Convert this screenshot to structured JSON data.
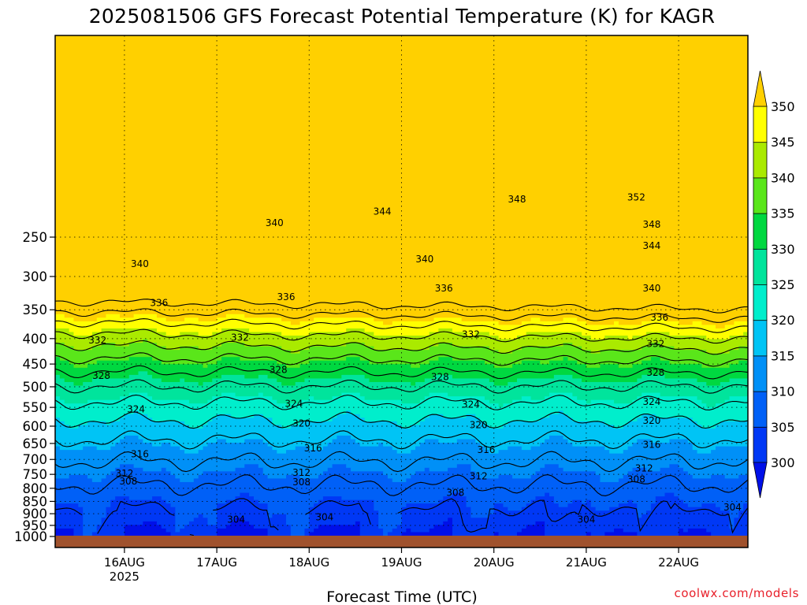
{
  "chart_data": {
    "type": "heatmap",
    "title": "2025081506 GFS Forecast Potential Temperature (K) for KAGR",
    "xlabel": "Forecast Time (UTC)",
    "ylabel": "",
    "credit": "coolwx.com/models",
    "x_ticks": [
      {
        "day": "16AUG",
        "year": "2025",
        "t": 18
      },
      {
        "day": "17AUG",
        "year": "",
        "t": 42
      },
      {
        "day": "18AUG",
        "year": "",
        "t": 66
      },
      {
        "day": "19AUG",
        "year": "",
        "t": 90
      },
      {
        "day": "20AUG",
        "year": "",
        "t": 114
      },
      {
        "day": "21AUG",
        "year": "",
        "t": 138
      },
      {
        "day": "22AUG",
        "year": "",
        "t": 162
      }
    ],
    "xlim_hours": [
      0,
      180
    ],
    "y_ticks": [
      250,
      300,
      350,
      400,
      450,
      500,
      550,
      600,
      650,
      700,
      750,
      800,
      850,
      900,
      950,
      1000
    ],
    "ylim_hPa": [
      1000,
      200
    ],
    "y_scale": "log-pressure",
    "contour_interval": 4,
    "contour_labels": [
      {
        "v": "352",
        "t": 151,
        "p": 208
      },
      {
        "v": "348",
        "t": 120,
        "p": 210
      },
      {
        "v": "348",
        "t": 155,
        "p": 236
      },
      {
        "v": "344",
        "t": 85,
        "p": 222
      },
      {
        "v": "344",
        "t": 155,
        "p": 260
      },
      {
        "v": "340",
        "t": 57,
        "p": 234
      },
      {
        "v": "340",
        "t": 22,
        "p": 283
      },
      {
        "v": "340",
        "t": 96,
        "p": 277
      },
      {
        "v": "340",
        "t": 155,
        "p": 317
      },
      {
        "v": "336",
        "t": 27,
        "p": 339
      },
      {
        "v": "336",
        "t": 60,
        "p": 330
      },
      {
        "v": "336",
        "t": 101,
        "p": 317
      },
      {
        "v": "336",
        "t": 157,
        "p": 363
      },
      {
        "v": "332",
        "t": 11,
        "p": 403
      },
      {
        "v": "332",
        "t": 48,
        "p": 398
      },
      {
        "v": "332",
        "t": 108,
        "p": 392
      },
      {
        "v": "332",
        "t": 156,
        "p": 410
      },
      {
        "v": "328",
        "t": 12,
        "p": 475
      },
      {
        "v": "328",
        "t": 58,
        "p": 462
      },
      {
        "v": "328",
        "t": 100,
        "p": 478
      },
      {
        "v": "328",
        "t": 156,
        "p": 468
      },
      {
        "v": "324",
        "t": 21,
        "p": 555
      },
      {
        "v": "324",
        "t": 62,
        "p": 541
      },
      {
        "v": "324",
        "t": 108,
        "p": 543
      },
      {
        "v": "324",
        "t": 155,
        "p": 536
      },
      {
        "v": "320",
        "t": 64,
        "p": 592
      },
      {
        "v": "320",
        "t": 110,
        "p": 597
      },
      {
        "v": "320",
        "t": 155,
        "p": 585
      },
      {
        "v": "316",
        "t": 22,
        "p": 683
      },
      {
        "v": "316",
        "t": 67,
        "p": 664
      },
      {
        "v": "316",
        "t": 112,
        "p": 670
      },
      {
        "v": "316",
        "t": 155,
        "p": 654
      },
      {
        "v": "312",
        "t": 18,
        "p": 747
      },
      {
        "v": "312",
        "t": 64,
        "p": 744
      },
      {
        "v": "312",
        "t": 110,
        "p": 757
      },
      {
        "v": "312",
        "t": 153,
        "p": 730
      },
      {
        "v": "308",
        "t": 19,
        "p": 775
      },
      {
        "v": "308",
        "t": 64,
        "p": 777
      },
      {
        "v": "308",
        "t": 104,
        "p": 817
      },
      {
        "v": "308",
        "t": 151,
        "p": 767
      },
      {
        "v": "304",
        "t": 47,
        "p": 925
      },
      {
        "v": "304",
        "t": 70,
        "p": 914
      },
      {
        "v": "304",
        "t": 138,
        "p": 924
      },
      {
        "v": "304",
        "t": 176,
        "p": 873
      }
    ],
    "colorbar": {
      "min": 300,
      "max": 350,
      "step": 5,
      "labels": [
        "350",
        "345",
        "340",
        "335",
        "330",
        "325",
        "320",
        "315",
        "310",
        "305",
        "300"
      ],
      "colors": [
        "#0010e8",
        "#0038f5",
        "#0060f7",
        "#0090f7",
        "#00c4f5",
        "#00eecc",
        "#00e49c",
        "#00d840",
        "#5ae61a",
        "#aaea00",
        "#ffff00",
        "#ffd000"
      ],
      "extend": "both"
    },
    "ground_color": "#a0522d"
  }
}
